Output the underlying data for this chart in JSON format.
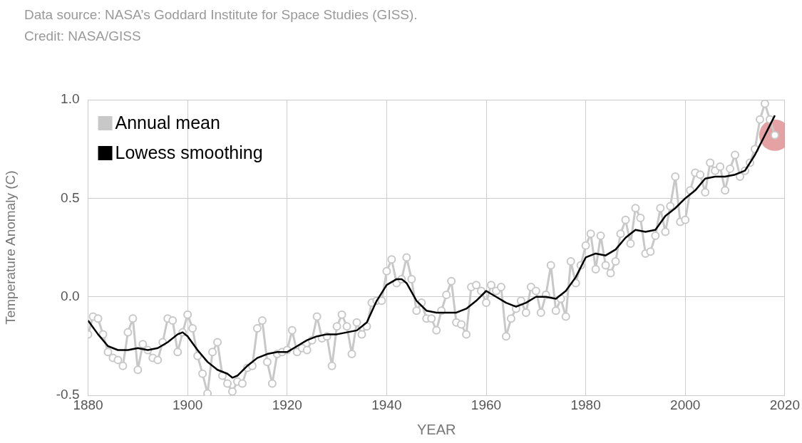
{
  "chart_data": {
    "type": "line",
    "xlabel": "YEAR",
    "ylabel": "Temperature Anomaly (C)",
    "annotations": [
      "Data source: NASA’s Goddard Institute for Space Studies (GISS).",
      "Credit: NASA/GISS"
    ],
    "xlim": [
      1880,
      2020
    ],
    "xticks": [
      1880,
      1900,
      1920,
      1940,
      1960,
      1980,
      2000,
      2020
    ],
    "ylim": [
      -0.5,
      1.0
    ],
    "yticks": [
      {
        "value": -0.5,
        "label": "-0.5"
      },
      {
        "value": 0,
        "label": "0.0"
      },
      {
        "value": 0.5,
        "label": "0.5"
      },
      {
        "value": 1.0,
        "label": "1.0"
      }
    ],
    "grid": true,
    "legend": "top left",
    "series": [
      {
        "name": "Annual mean",
        "color": "#c8c8c8",
        "marker": "circle",
        "x": [
          1880,
          1881,
          1882,
          1883,
          1884,
          1885,
          1886,
          1887,
          1888,
          1889,
          1890,
          1891,
          1892,
          1893,
          1894,
          1895,
          1896,
          1897,
          1898,
          1899,
          1900,
          1901,
          1902,
          1903,
          1904,
          1905,
          1906,
          1907,
          1908,
          1909,
          1910,
          1911,
          1912,
          1913,
          1914,
          1915,
          1916,
          1917,
          1918,
          1919,
          1920,
          1921,
          1922,
          1923,
          1924,
          1925,
          1926,
          1927,
          1928,
          1929,
          1930,
          1931,
          1932,
          1933,
          1934,
          1935,
          1936,
          1937,
          1938,
          1939,
          1940,
          1941,
          1942,
          1943,
          1944,
          1945,
          1946,
          1947,
          1948,
          1949,
          1950,
          1951,
          1952,
          1953,
          1954,
          1955,
          1956,
          1957,
          1958,
          1959,
          1960,
          1961,
          1962,
          1963,
          1964,
          1965,
          1966,
          1967,
          1968,
          1969,
          1970,
          1971,
          1972,
          1973,
          1974,
          1975,
          1976,
          1977,
          1978,
          1979,
          1980,
          1981,
          1982,
          1983,
          1984,
          1985,
          1986,
          1987,
          1988,
          1989,
          1990,
          1991,
          1992,
          1993,
          1994,
          1995,
          1996,
          1997,
          1998,
          1999,
          2000,
          2001,
          2002,
          2003,
          2004,
          2005,
          2006,
          2007,
          2008,
          2009,
          2010,
          2011,
          2012,
          2013,
          2014,
          2015,
          2016,
          2017,
          2018
        ],
        "values": [
          -0.19,
          -0.1,
          -0.11,
          -0.19,
          -0.28,
          -0.31,
          -0.32,
          -0.35,
          -0.18,
          -0.11,
          -0.37,
          -0.24,
          -0.27,
          -0.31,
          -0.32,
          -0.23,
          -0.11,
          -0.12,
          -0.28,
          -0.18,
          -0.09,
          -0.16,
          -0.3,
          -0.39,
          -0.49,
          -0.28,
          -0.23,
          -0.4,
          -0.44,
          -0.48,
          -0.43,
          -0.44,
          -0.36,
          -0.35,
          -0.16,
          -0.12,
          -0.33,
          -0.44,
          -0.29,
          -0.28,
          -0.27,
          -0.17,
          -0.28,
          -0.26,
          -0.27,
          -0.22,
          -0.1,
          -0.21,
          -0.2,
          -0.35,
          -0.15,
          -0.09,
          -0.15,
          -0.29,
          -0.13,
          -0.19,
          -0.15,
          -0.03,
          -0.02,
          -0.02,
          0.13,
          0.19,
          0.07,
          0.09,
          0.2,
          0.09,
          -0.07,
          -0.03,
          -0.11,
          -0.11,
          -0.17,
          -0.07,
          0.01,
          0.08,
          -0.13,
          -0.14,
          -0.19,
          0.05,
          0.06,
          0.03,
          -0.03,
          0.06,
          0.03,
          0.05,
          -0.2,
          -0.11,
          -0.06,
          -0.02,
          -0.08,
          0.05,
          0.03,
          -0.08,
          0.01,
          0.16,
          -0.07,
          -0.01,
          -0.1,
          0.18,
          0.07,
          0.16,
          0.26,
          0.32,
          0.14,
          0.31,
          0.16,
          0.12,
          0.18,
          0.32,
          0.39,
          0.27,
          0.45,
          0.4,
          0.22,
          0.23,
          0.31,
          0.45,
          0.33,
          0.46,
          0.61,
          0.38,
          0.39,
          0.54,
          0.63,
          0.62,
          0.53,
          0.68,
          0.64,
          0.66,
          0.54,
          0.65,
          0.72,
          0.61,
          0.64,
          0.68,
          0.75,
          0.9,
          0.98,
          0.9,
          0.82
        ]
      },
      {
        "name": "Lowess smoothing",
        "color": "#000000",
        "marker": "none",
        "x": [
          1880,
          1882,
          1884,
          1886,
          1888,
          1890,
          1892,
          1894,
          1896,
          1898,
          1899,
          1900,
          1902,
          1904,
          1906,
          1908,
          1909,
          1910,
          1912,
          1914,
          1916,
          1918,
          1920,
          1922,
          1924,
          1926,
          1928,
          1930,
          1932,
          1934,
          1936,
          1938,
          1940,
          1942,
          1943,
          1944,
          1946,
          1948,
          1950,
          1952,
          1954,
          1956,
          1958,
          1960,
          1962,
          1964,
          1966,
          1968,
          1970,
          1972,
          1974,
          1976,
          1978,
          1980,
          1982,
          1984,
          1986,
          1988,
          1990,
          1992,
          1994,
          1996,
          1998,
          2000,
          2002,
          2004,
          2006,
          2008,
          2010,
          2012,
          2014,
          2016,
          2018
        ],
        "values": [
          -0.12,
          -0.19,
          -0.25,
          -0.27,
          -0.27,
          -0.26,
          -0.27,
          -0.26,
          -0.23,
          -0.19,
          -0.18,
          -0.2,
          -0.27,
          -0.33,
          -0.37,
          -0.39,
          -0.41,
          -0.4,
          -0.35,
          -0.31,
          -0.29,
          -0.28,
          -0.28,
          -0.25,
          -0.22,
          -0.2,
          -0.19,
          -0.19,
          -0.18,
          -0.17,
          -0.13,
          -0.02,
          0.06,
          0.09,
          0.09,
          0.07,
          -0.02,
          -0.07,
          -0.08,
          -0.08,
          -0.08,
          -0.06,
          -0.02,
          0.03,
          0,
          -0.03,
          -0.05,
          -0.03,
          0,
          0,
          -0.01,
          0.03,
          0.1,
          0.2,
          0.22,
          0.21,
          0.24,
          0.3,
          0.34,
          0.33,
          0.34,
          0.41,
          0.45,
          0.5,
          0.54,
          0.6,
          0.61,
          0.61,
          0.62,
          0.64,
          0.72,
          0.82,
          0.92
        ]
      },
      {
        "type": "scatter",
        "color": "#d97b7d",
        "marker": "circle",
        "x": [
          2018
        ],
        "values": [
          0.82
        ]
      }
    ]
  }
}
